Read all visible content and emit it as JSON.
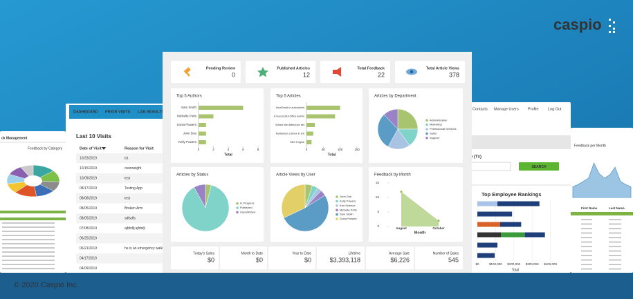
{
  "brand": {
    "logo": "caspio",
    "copyright": "© 2020 Caspio Inc."
  },
  "kpis": [
    {
      "label": "Pending Review",
      "value": 0
    },
    {
      "label": "Published Articles",
      "value": 12
    },
    {
      "label": "Total Feedback",
      "value": 22
    },
    {
      "label": "Total Article Views",
      "value": 378
    }
  ],
  "charts": {
    "top_authors": {
      "type": "hbar",
      "title": "Top 5 Authors",
      "categories": [
        "Sam Smith",
        "Michelle Potts",
        "Sonia Flowers",
        "John Doe",
        "Kelly Powers"
      ],
      "values": [
        6,
        2,
        1,
        1,
        1
      ],
      "color": "#a8c46e",
      "xlim": [
        0,
        8
      ],
      "xticks": [
        0,
        2,
        4,
        6,
        8
      ],
      "xlabel": "Total"
    },
    "top_articles": {
      "type": "hbar",
      "title": "Top 5 Articles",
      "categories": [
        "JavaScript to autosubmit",
        "A Successful Office Admin",
        "What's the difference bet",
        "Multiselect Listbox in DS",
        "SEO Engine"
      ],
      "values": [
        100,
        85,
        25,
        20,
        15
      ],
      "color": "#a8c46e",
      "xlim": [
        0,
        150
      ],
      "xticks": [
        0,
        50,
        100,
        150
      ],
      "xlabel": "Total"
    },
    "by_department": {
      "type": "pie",
      "title": "Articles by Department",
      "categories": [
        "Administration",
        "Marketing",
        "Professional Services",
        "Sales",
        "Support"
      ],
      "values": [
        25,
        15,
        18,
        30,
        12
      ],
      "colors": [
        "#a8c46e",
        "#7fd3c9",
        "#a9c3e3",
        "#5b9cc6",
        "#9a82c6"
      ]
    },
    "by_status": {
      "type": "pie",
      "title": "Articles by Status",
      "categories": [
        "In Progress",
        "Published",
        "Unpublished"
      ],
      "values": [
        4,
        88,
        8
      ],
      "colors": [
        "#a8c46e",
        "#7fd3c9",
        "#9a82c6"
      ]
    },
    "views_by_user": {
      "type": "pie",
      "title": "Article Views by User",
      "categories": [
        "John Doe",
        "Kelly Powers",
        "Ken Science",
        "Michelle Potts",
        "Sam Smith",
        "Sonia Powers"
      ],
      "values": [
        5,
        4,
        3,
        4,
        52,
        32
      ],
      "colors": [
        "#a8c46e",
        "#7fd3c9",
        "#a9c3e3",
        "#9a82c6",
        "#5b9cc6",
        "#e2cf68"
      ]
    },
    "feedback_by_month": {
      "type": "area",
      "title": "Feedback by Month",
      "categories": [
        "August",
        "October"
      ],
      "values": [
        12,
        2
      ],
      "color": "#b7d58e",
      "ylim": [
        0,
        15
      ],
      "yticks": [
        0,
        5,
        10,
        15
      ],
      "xlabel": "Month"
    }
  },
  "metrics": [
    {
      "label": "Today's Sales",
      "value": "$0"
    },
    {
      "label": "Month to Date",
      "value": "$0"
    },
    {
      "label": "Year to Date",
      "value": "$0"
    },
    {
      "label": "Lifetime",
      "value": "$3,393,118"
    },
    {
      "label": "Average Sale",
      "value": "$6,226"
    },
    {
      "label": "Number of Sales",
      "value": "545"
    }
  ],
  "visits_panel": {
    "tabs": [
      "DASHBOARD",
      "PRIOR VISITS",
      "LAB RESULTS"
    ],
    "title": "Last 10 Visits",
    "columns": [
      "Date of Visit",
      "Reason for Visit"
    ],
    "rows": [
      [
        "10/23/2019",
        "tst"
      ],
      [
        "10/15/2019",
        "overweight"
      ],
      [
        "10/09/2019",
        "test"
      ],
      [
        "08/17/2019",
        "Testing App"
      ],
      [
        "08/08/2019",
        "test"
      ],
      [
        "08/05/2019",
        "Broken Arm"
      ],
      [
        "08/05/2019",
        "sdfsdfs"
      ],
      [
        "07/08/2019",
        "ajfdsfjl;ajfdsfjl"
      ],
      [
        "06/25/2019"
      ],
      [
        "06/21/2019",
        "he is an emergency walk"
      ],
      [
        "04/17/2019"
      ],
      [
        "04/09/2019"
      ]
    ]
  },
  "left_panel": {
    "title": "ck Management",
    "chart_title": "Feedback by Category",
    "values": [
      14,
      12,
      10,
      12,
      14,
      10,
      10,
      10,
      8
    ],
    "colors": [
      "#3aa6a0",
      "#7cc04a",
      "#8c8c8c",
      "#3d6fb6",
      "#e0542a",
      "#f2c531",
      "#9fd0ea",
      "#8a5fb0",
      "#c9c9c9"
    ]
  },
  "admin_panel": {
    "nav": [
      "Contacts",
      "Manage Users",
      "Profile",
      "Log Out"
    ],
    "field_label": "e (Tx)",
    "button": "SEARCH",
    "rankings": {
      "title": "Top Employee Rankings",
      "rows": [
        [
          {
            "value": 110000,
            "color": "#a9c4e8"
          },
          {
            "value": 230000,
            "color": "#1f3f7a"
          }
        ],
        [
          {
            "value": 190000,
            "color": "#1f3f7a"
          }
        ],
        [
          {
            "value": 125000,
            "color": "#d9622b"
          },
          {
            "value": 115000,
            "color": "#1f3f7a"
          }
        ],
        [
          {
            "value": 130000,
            "color": "#333333"
          },
          {
            "value": 130000,
            "color": "#3b9b3b"
          },
          {
            "value": 110000,
            "color": "#1f3f7a"
          }
        ],
        [
          {
            "value": 110000,
            "color": "#1f3f7a"
          }
        ],
        [
          {
            "value": 95000,
            "color": "#1f3f7a"
          }
        ]
      ],
      "xlim": [
        0,
        500000
      ],
      "xticks": [
        {
          "value": 0,
          "label": "$0"
        },
        {
          "value": 100000,
          "label": "$100,000"
        },
        {
          "value": 200000,
          "label": "$200,000"
        },
        {
          "value": 300000,
          "label": "$300,000"
        },
        {
          "value": 400000,
          "label": "$400,000"
        }
      ],
      "xlabel": "Total"
    }
  },
  "feedback_panel": {
    "title": "Feedback per Month",
    "values": [
      10,
      12,
      15,
      18,
      32,
      22,
      18,
      21,
      28,
      15,
      12,
      10
    ],
    "columns": [
      "First Name",
      "Last Name"
    ]
  }
}
